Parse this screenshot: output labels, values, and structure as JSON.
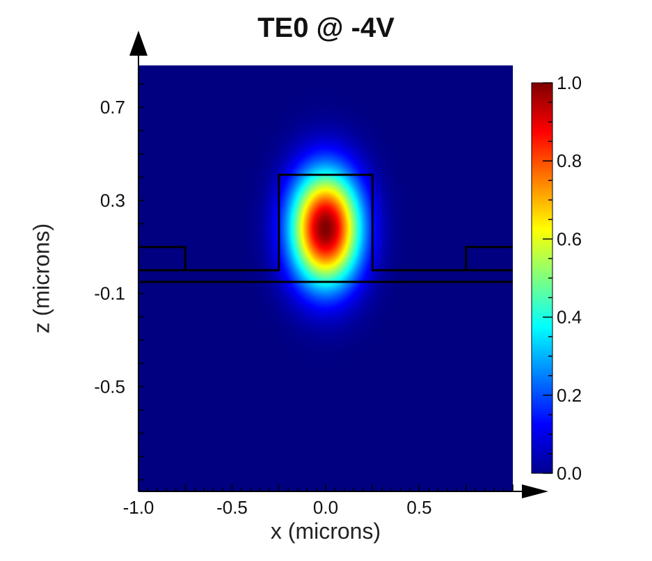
{
  "chart_data": {
    "type": "heatmap",
    "title": "TE0 @ -4V",
    "xlabel": "x (microns)",
    "ylabel": "z (microns)",
    "xlim": [
      -1.0,
      1.0
    ],
    "zlim": [
      -0.95,
      0.88
    ],
    "x_ticks": [
      "-1.0",
      "-0.5",
      "0.0",
      "0.5"
    ],
    "x_tick_values": [
      -1.0,
      -0.5,
      0.0,
      0.5
    ],
    "z_ticks": [
      "0.7",
      "0.3",
      "-0.1",
      "-0.5"
    ],
    "z_tick_values": [
      0.7,
      0.3,
      -0.1,
      -0.5
    ],
    "colorbar": {
      "ticks": [
        "1.0",
        "0.8",
        "0.6",
        "0.4",
        "0.2",
        "0.0"
      ],
      "tick_values": [
        1.0,
        0.8,
        0.6,
        0.4,
        0.2,
        0.0
      ],
      "range": [
        0.0,
        1.0
      ],
      "colormap": "jet"
    },
    "mode_field": {
      "peak": 1.0,
      "center_x": 0.0,
      "center_z": 0.18,
      "sigma_x": 0.13,
      "sigma_z": 0.17
    },
    "waveguide_outline": {
      "rib": {
        "x": [
          -0.25,
          0.25
        ],
        "z": [
          0.0,
          0.41
        ]
      },
      "slab_top_z": 0.0,
      "interface_z": -0.05,
      "side_steps": [
        {
          "x": [
            -1.0,
            -0.75
          ],
          "z": [
            0.0,
            0.1
          ]
        },
        {
          "x": [
            0.75,
            1.0
          ],
          "z": [
            0.0,
            0.1
          ]
        }
      ]
    }
  }
}
